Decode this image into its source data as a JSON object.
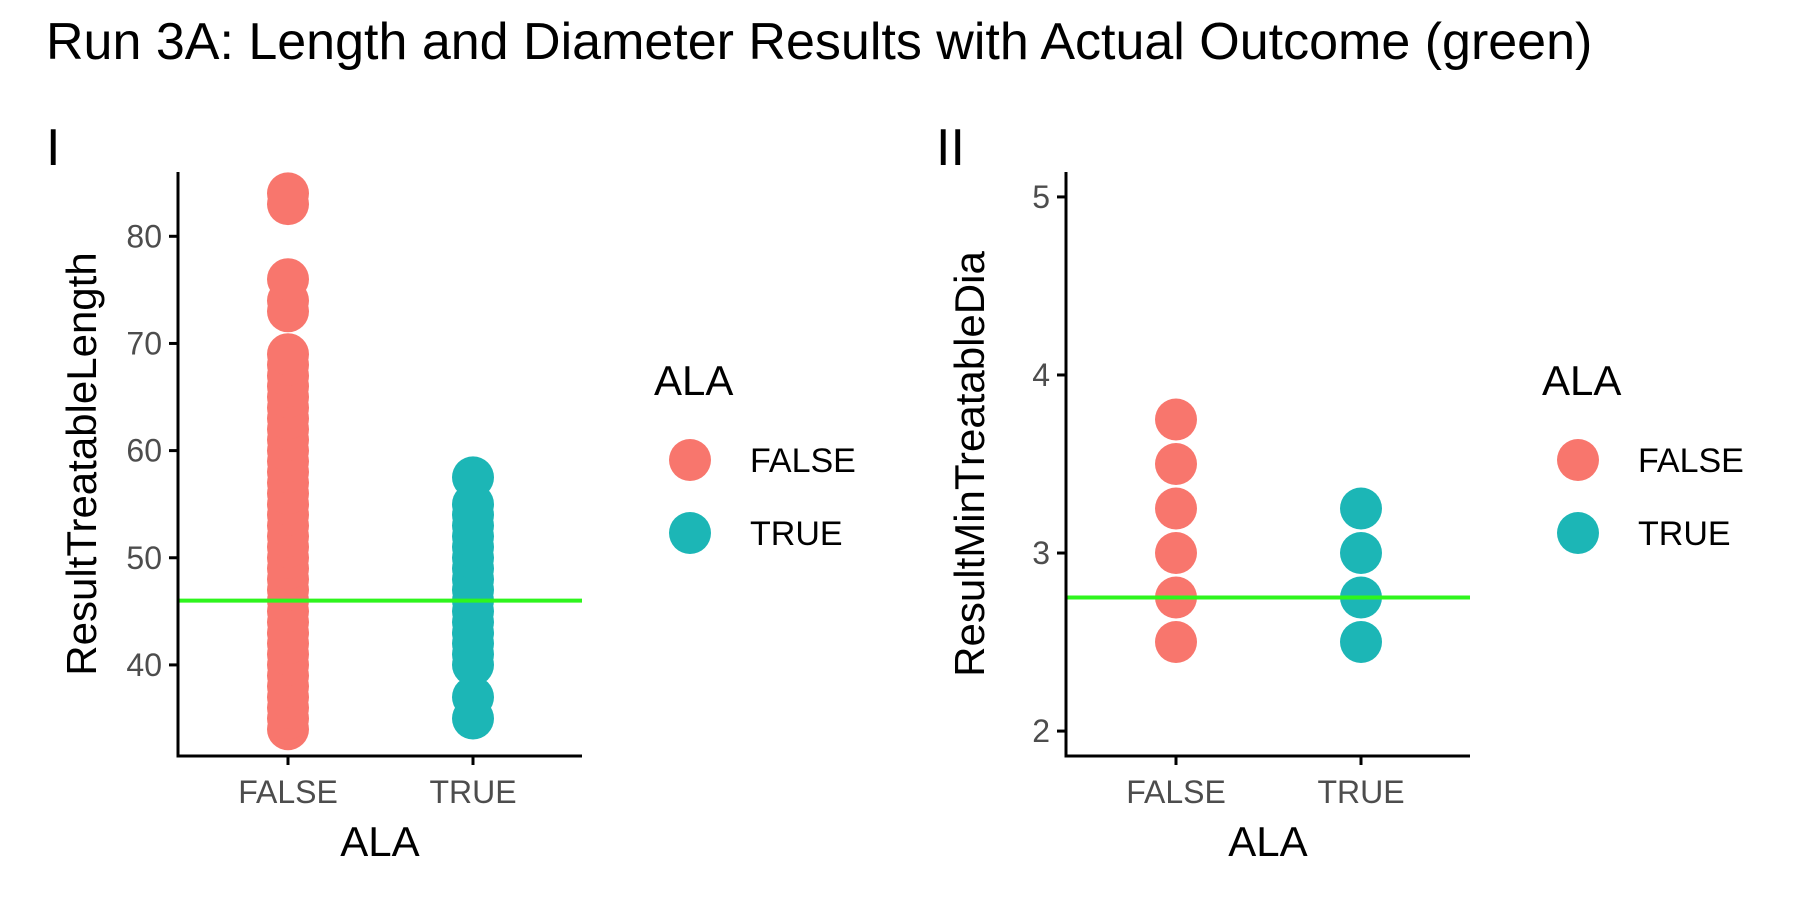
{
  "title": "Run 3A: Length and Diameter Results with Actual Outcome (green)",
  "colors": {
    "FALSE": "#F8766D",
    "TRUE": "#1CB6B6",
    "reference_line": "#2EF51D",
    "axis": "#000000",
    "tick_label": "#4D4D4D"
  },
  "panels": [
    {
      "tag": "I",
      "legend": {
        "title": "ALA",
        "items": [
          "FALSE",
          "TRUE"
        ]
      }
    },
    {
      "tag": "II",
      "legend": {
        "title": "ALA",
        "items": [
          "FALSE",
          "TRUE"
        ]
      }
    }
  ],
  "chart_data": [
    {
      "type": "scatter",
      "title": "",
      "xlabel": "ALA",
      "ylabel": "ResultTreatableLength",
      "categories": [
        "FALSE",
        "TRUE"
      ],
      "y_ticks": [
        40,
        50,
        60,
        70,
        80
      ],
      "ylim": [
        31.5,
        86
      ],
      "grid": false,
      "legend_position": "right",
      "series": [
        {
          "name": "FALSE",
          "category": "FALSE",
          "values": [
            34,
            35,
            36,
            37,
            38,
            39,
            40,
            41,
            42,
            43,
            44,
            45,
            46,
            47,
            48,
            49,
            50,
            51,
            52,
            53,
            54,
            55,
            56,
            57,
            58,
            59,
            60,
            61,
            62,
            63,
            64,
            65,
            66,
            67,
            68,
            69,
            73,
            74,
            76,
            83,
            84
          ]
        },
        {
          "name": "TRUE",
          "category": "TRUE",
          "values": [
            35,
            37,
            40,
            41,
            42,
            43,
            44,
            45,
            46,
            47,
            48,
            49,
            50,
            51,
            52,
            53,
            54,
            55,
            57.5
          ]
        }
      ],
      "reference_line": {
        "y": 46,
        "label": "Actual Outcome"
      }
    },
    {
      "type": "scatter",
      "title": "",
      "xlabel": "ALA",
      "ylabel": "ResultMinTreatableDia",
      "categories": [
        "FALSE",
        "TRUE"
      ],
      "y_ticks": [
        2,
        3,
        4,
        5
      ],
      "ylim": [
        1.86,
        5.14
      ],
      "grid": false,
      "legend_position": "right",
      "series": [
        {
          "name": "FALSE",
          "category": "FALSE",
          "values": [
            2.5,
            2.75,
            3,
            3.25,
            3.5,
            3.75
          ]
        },
        {
          "name": "TRUE",
          "category": "TRUE",
          "values": [
            2.5,
            2.75,
            3,
            3.25
          ]
        }
      ],
      "reference_line": {
        "y": 2.75,
        "label": "Actual Outcome"
      }
    }
  ]
}
